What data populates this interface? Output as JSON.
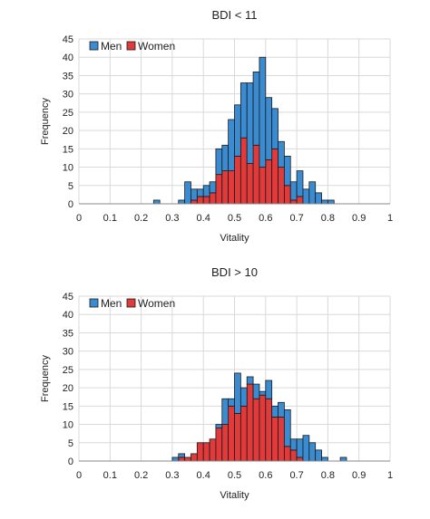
{
  "chart_data": [
    {
      "type": "bar",
      "title": "BDI < 11",
      "xlabel": "Vitality",
      "ylabel": "Frequency",
      "xlim": [
        0,
        1
      ],
      "ylim": [
        0,
        45
      ],
      "xticks": [
        "0",
        "0.1",
        "0.2",
        "0.3",
        "0.4",
        "0.5",
        "0.6",
        "0.7",
        "0.8",
        "0.9",
        "1"
      ],
      "yticks": [
        "0",
        "5",
        "10",
        "15",
        "20",
        "25",
        "30",
        "35",
        "40",
        "45"
      ],
      "grid": true,
      "legend": "top-left",
      "bin_width": 0.02,
      "stacked": true,
      "series": [
        {
          "name": "Men",
          "color": "#3b8bd1",
          "bins": [
            {
              "x": 0.24,
              "y": 1
            },
            {
              "x": 0.32,
              "y": 1
            },
            {
              "x": 0.34,
              "y": 6
            },
            {
              "x": 0.36,
              "y": 3
            },
            {
              "x": 0.38,
              "y": 2
            },
            {
              "x": 0.4,
              "y": 3
            },
            {
              "x": 0.42,
              "y": 3
            },
            {
              "x": 0.44,
              "y": 7
            },
            {
              "x": 0.46,
              "y": 7
            },
            {
              "x": 0.48,
              "y": 14
            },
            {
              "x": 0.5,
              "y": 14
            },
            {
              "x": 0.52,
              "y": 15
            },
            {
              "x": 0.54,
              "y": 22
            },
            {
              "x": 0.56,
              "y": 20
            },
            {
              "x": 0.58,
              "y": 30
            },
            {
              "x": 0.6,
              "y": 17
            },
            {
              "x": 0.62,
              "y": 11
            },
            {
              "x": 0.64,
              "y": 7
            },
            {
              "x": 0.66,
              "y": 8
            },
            {
              "x": 0.68,
              "y": 5
            },
            {
              "x": 0.7,
              "y": 7
            },
            {
              "x": 0.72,
              "y": 4
            },
            {
              "x": 0.74,
              "y": 6
            },
            {
              "x": 0.76,
              "y": 3
            },
            {
              "x": 0.78,
              "y": 1
            },
            {
              "x": 0.8,
              "y": 1
            }
          ]
        },
        {
          "name": "Women",
          "color": "#e03a3a",
          "bins": [
            {
              "x": 0.36,
              "y": 1
            },
            {
              "x": 0.38,
              "y": 2
            },
            {
              "x": 0.4,
              "y": 2
            },
            {
              "x": 0.42,
              "y": 3
            },
            {
              "x": 0.44,
              "y": 8
            },
            {
              "x": 0.46,
              "y": 9
            },
            {
              "x": 0.48,
              "y": 9
            },
            {
              "x": 0.5,
              "y": 13
            },
            {
              "x": 0.52,
              "y": 18
            },
            {
              "x": 0.54,
              "y": 11
            },
            {
              "x": 0.56,
              "y": 16
            },
            {
              "x": 0.58,
              "y": 10
            },
            {
              "x": 0.6,
              "y": 12
            },
            {
              "x": 0.62,
              "y": 15
            },
            {
              "x": 0.64,
              "y": 10
            },
            {
              "x": 0.66,
              "y": 5
            },
            {
              "x": 0.68,
              "y": 1
            },
            {
              "x": 0.7,
              "y": 2
            }
          ]
        }
      ]
    },
    {
      "type": "bar",
      "title": "BDI > 10",
      "xlabel": "Vitality",
      "ylabel": "Frequency",
      "xlim": [
        0,
        1
      ],
      "ylim": [
        0,
        45
      ],
      "xticks": [
        "0",
        "0.1",
        "0.2",
        "0.3",
        "0.4",
        "0.5",
        "0.6",
        "0.7",
        "0.8",
        "0.9",
        "1"
      ],
      "yticks": [
        "0",
        "5",
        "10",
        "15",
        "20",
        "25",
        "30",
        "35",
        "40",
        "45"
      ],
      "grid": true,
      "legend": "top-left",
      "bin_width": 0.02,
      "stacked": true,
      "series": [
        {
          "name": "Men",
          "color": "#3b8bd1",
          "bins": [
            {
              "x": 0.3,
              "y": 1
            },
            {
              "x": 0.32,
              "y": 1
            },
            {
              "x": 0.44,
              "y": 1
            },
            {
              "x": 0.46,
              "y": 7
            },
            {
              "x": 0.48,
              "y": 2
            },
            {
              "x": 0.5,
              "y": 11
            },
            {
              "x": 0.52,
              "y": 5
            },
            {
              "x": 0.54,
              "y": 2
            },
            {
              "x": 0.56,
              "y": 4
            },
            {
              "x": 0.58,
              "y": 1
            },
            {
              "x": 0.6,
              "y": 5
            },
            {
              "x": 0.62,
              "y": 3
            },
            {
              "x": 0.64,
              "y": 4
            },
            {
              "x": 0.66,
              "y": 10
            },
            {
              "x": 0.68,
              "y": 3
            },
            {
              "x": 0.7,
              "y": 5
            },
            {
              "x": 0.72,
              "y": 7
            },
            {
              "x": 0.74,
              "y": 5
            },
            {
              "x": 0.76,
              "y": 3
            },
            {
              "x": 0.78,
              "y": 1
            },
            {
              "x": 0.84,
              "y": 1
            }
          ]
        },
        {
          "name": "Women",
          "color": "#e03a3a",
          "bins": [
            {
              "x": 0.32,
              "y": 1
            },
            {
              "x": 0.34,
              "y": 1
            },
            {
              "x": 0.36,
              "y": 2
            },
            {
              "x": 0.38,
              "y": 5
            },
            {
              "x": 0.4,
              "y": 5
            },
            {
              "x": 0.42,
              "y": 6
            },
            {
              "x": 0.44,
              "y": 9
            },
            {
              "x": 0.46,
              "y": 10
            },
            {
              "x": 0.48,
              "y": 15
            },
            {
              "x": 0.5,
              "y": 13
            },
            {
              "x": 0.52,
              "y": 15
            },
            {
              "x": 0.54,
              "y": 21
            },
            {
              "x": 0.56,
              "y": 17
            },
            {
              "x": 0.58,
              "y": 18
            },
            {
              "x": 0.6,
              "y": 17
            },
            {
              "x": 0.62,
              "y": 12
            },
            {
              "x": 0.64,
              "y": 12
            },
            {
              "x": 0.66,
              "y": 4
            },
            {
              "x": 0.68,
              "y": 3
            },
            {
              "x": 0.7,
              "y": 1
            }
          ]
        }
      ]
    }
  ]
}
